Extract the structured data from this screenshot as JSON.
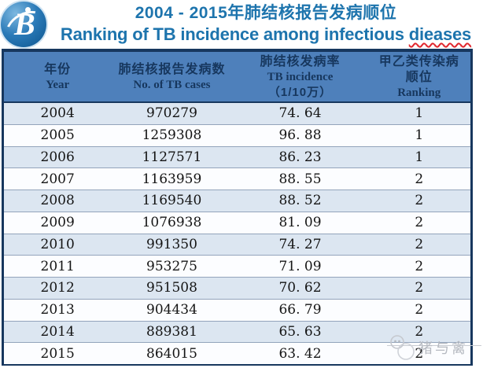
{
  "title": {
    "line1": "2004 - 2015年肺结核报告发病顺位",
    "line2_pre": "Ranking of TB incidence among infectious ",
    "line2_word": "dieases"
  },
  "logo": {
    "letter": "B"
  },
  "table": {
    "header": {
      "col1_zh": "年份",
      "col1_en": "Year",
      "col2_zh": "肺结核报告发病数",
      "col2_en": "No. of TB cases",
      "col3_zh": "肺结核发病率",
      "col3_en": "TB incidence",
      "col3_sub": "（1/10万）",
      "col4_zh": "甲乙类传染病",
      "col4_zh2": "顺位",
      "col4_en": "Ranking"
    }
  },
  "watermark": {
    "text": "猪与禽"
  },
  "colors": {
    "title_blue": "#1d74ad",
    "header_bg": "#4e80bb",
    "header_text": "#17375e",
    "border_navy": "#17375e",
    "row_alt": "#dce6f1",
    "row_white": "#fcfdff",
    "squiggle_red": "#e0262d",
    "watermark_gray": "#b6bac1"
  },
  "chart_data": {
    "type": "table",
    "title": "2004 - 2015年肺结核报告发病顺位 / Ranking of TB incidence among infectious dieases",
    "columns": [
      "年份 Year",
      "肺结核报告发病数 No. of TB cases",
      "肺结核发病率 TB incidence（1/10万）",
      "甲乙类传染病顺位 Ranking"
    ],
    "years": [
      "2004",
      "2005",
      "2006",
      "2007",
      "2008",
      "2009",
      "2010",
      "2011",
      "2012",
      "2013",
      "2014",
      "2015"
    ],
    "tb_cases": [
      970279,
      1259308,
      1127571,
      1163959,
      1169540,
      1076938,
      991350,
      953275,
      951508,
      904434,
      889381,
      864015
    ],
    "tb_incidence_per_100k": [
      74.64,
      96.88,
      86.23,
      88.55,
      88.52,
      81.09,
      74.27,
      71.09,
      70.62,
      66.79,
      65.63,
      63.42
    ],
    "ranking": [
      1,
      1,
      1,
      2,
      2,
      2,
      2,
      2,
      2,
      2,
      2,
      2
    ],
    "legend_position": "none",
    "grid": true
  }
}
